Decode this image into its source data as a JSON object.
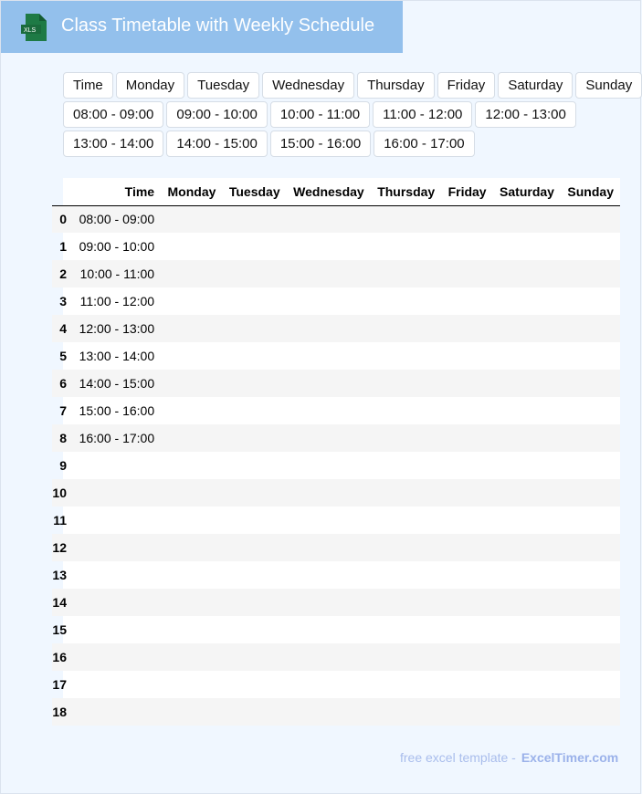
{
  "header": {
    "title": "Class Timetable with Weekly Schedule",
    "icon": "xls-file-icon",
    "icon_text": "XLS"
  },
  "day_buttons": [
    "Time",
    "Monday",
    "Tuesday",
    "Wednesday",
    "Thursday",
    "Friday",
    "Saturday",
    "Sunday"
  ],
  "time_buttons": [
    [
      "08:00 - 09:00",
      "09:00 - 10:00",
      "10:00 - 11:00",
      "11:00 - 12:00",
      "12:00 - 13:00"
    ],
    [
      "13:00 - 14:00",
      "14:00 - 15:00",
      "15:00 - 16:00",
      "16:00 - 17:00"
    ]
  ],
  "table": {
    "columns": [
      "Time",
      "Monday",
      "Tuesday",
      "Wednesday",
      "Thursday",
      "Friday",
      "Saturday",
      "Sunday"
    ],
    "rows": [
      [
        "0",
        "08:00 - 09:00"
      ],
      [
        "1",
        "09:00 - 10:00"
      ],
      [
        "2",
        "10:00 - 11:00"
      ],
      [
        "3",
        "11:00 - 12:00"
      ],
      [
        "4",
        "12:00 - 13:00"
      ],
      [
        "5",
        "13:00 - 14:00"
      ],
      [
        "6",
        "14:00 - 15:00"
      ],
      [
        "7",
        "15:00 - 16:00"
      ],
      [
        "8",
        "16:00 - 17:00"
      ],
      [
        "9",
        ""
      ],
      [
        "10",
        ""
      ],
      [
        "11",
        ""
      ],
      [
        "12",
        ""
      ],
      [
        "13",
        ""
      ],
      [
        "14",
        ""
      ],
      [
        "15",
        ""
      ],
      [
        "16",
        ""
      ],
      [
        "17",
        ""
      ],
      [
        "18",
        ""
      ]
    ]
  },
  "footer": {
    "text": "free excel template -",
    "brand": "ExcelTimer.com"
  },
  "colors": {
    "header_bg": "#93c0ec",
    "page_bg": "#f0f7ff",
    "xls_green": "#1e7a45"
  }
}
